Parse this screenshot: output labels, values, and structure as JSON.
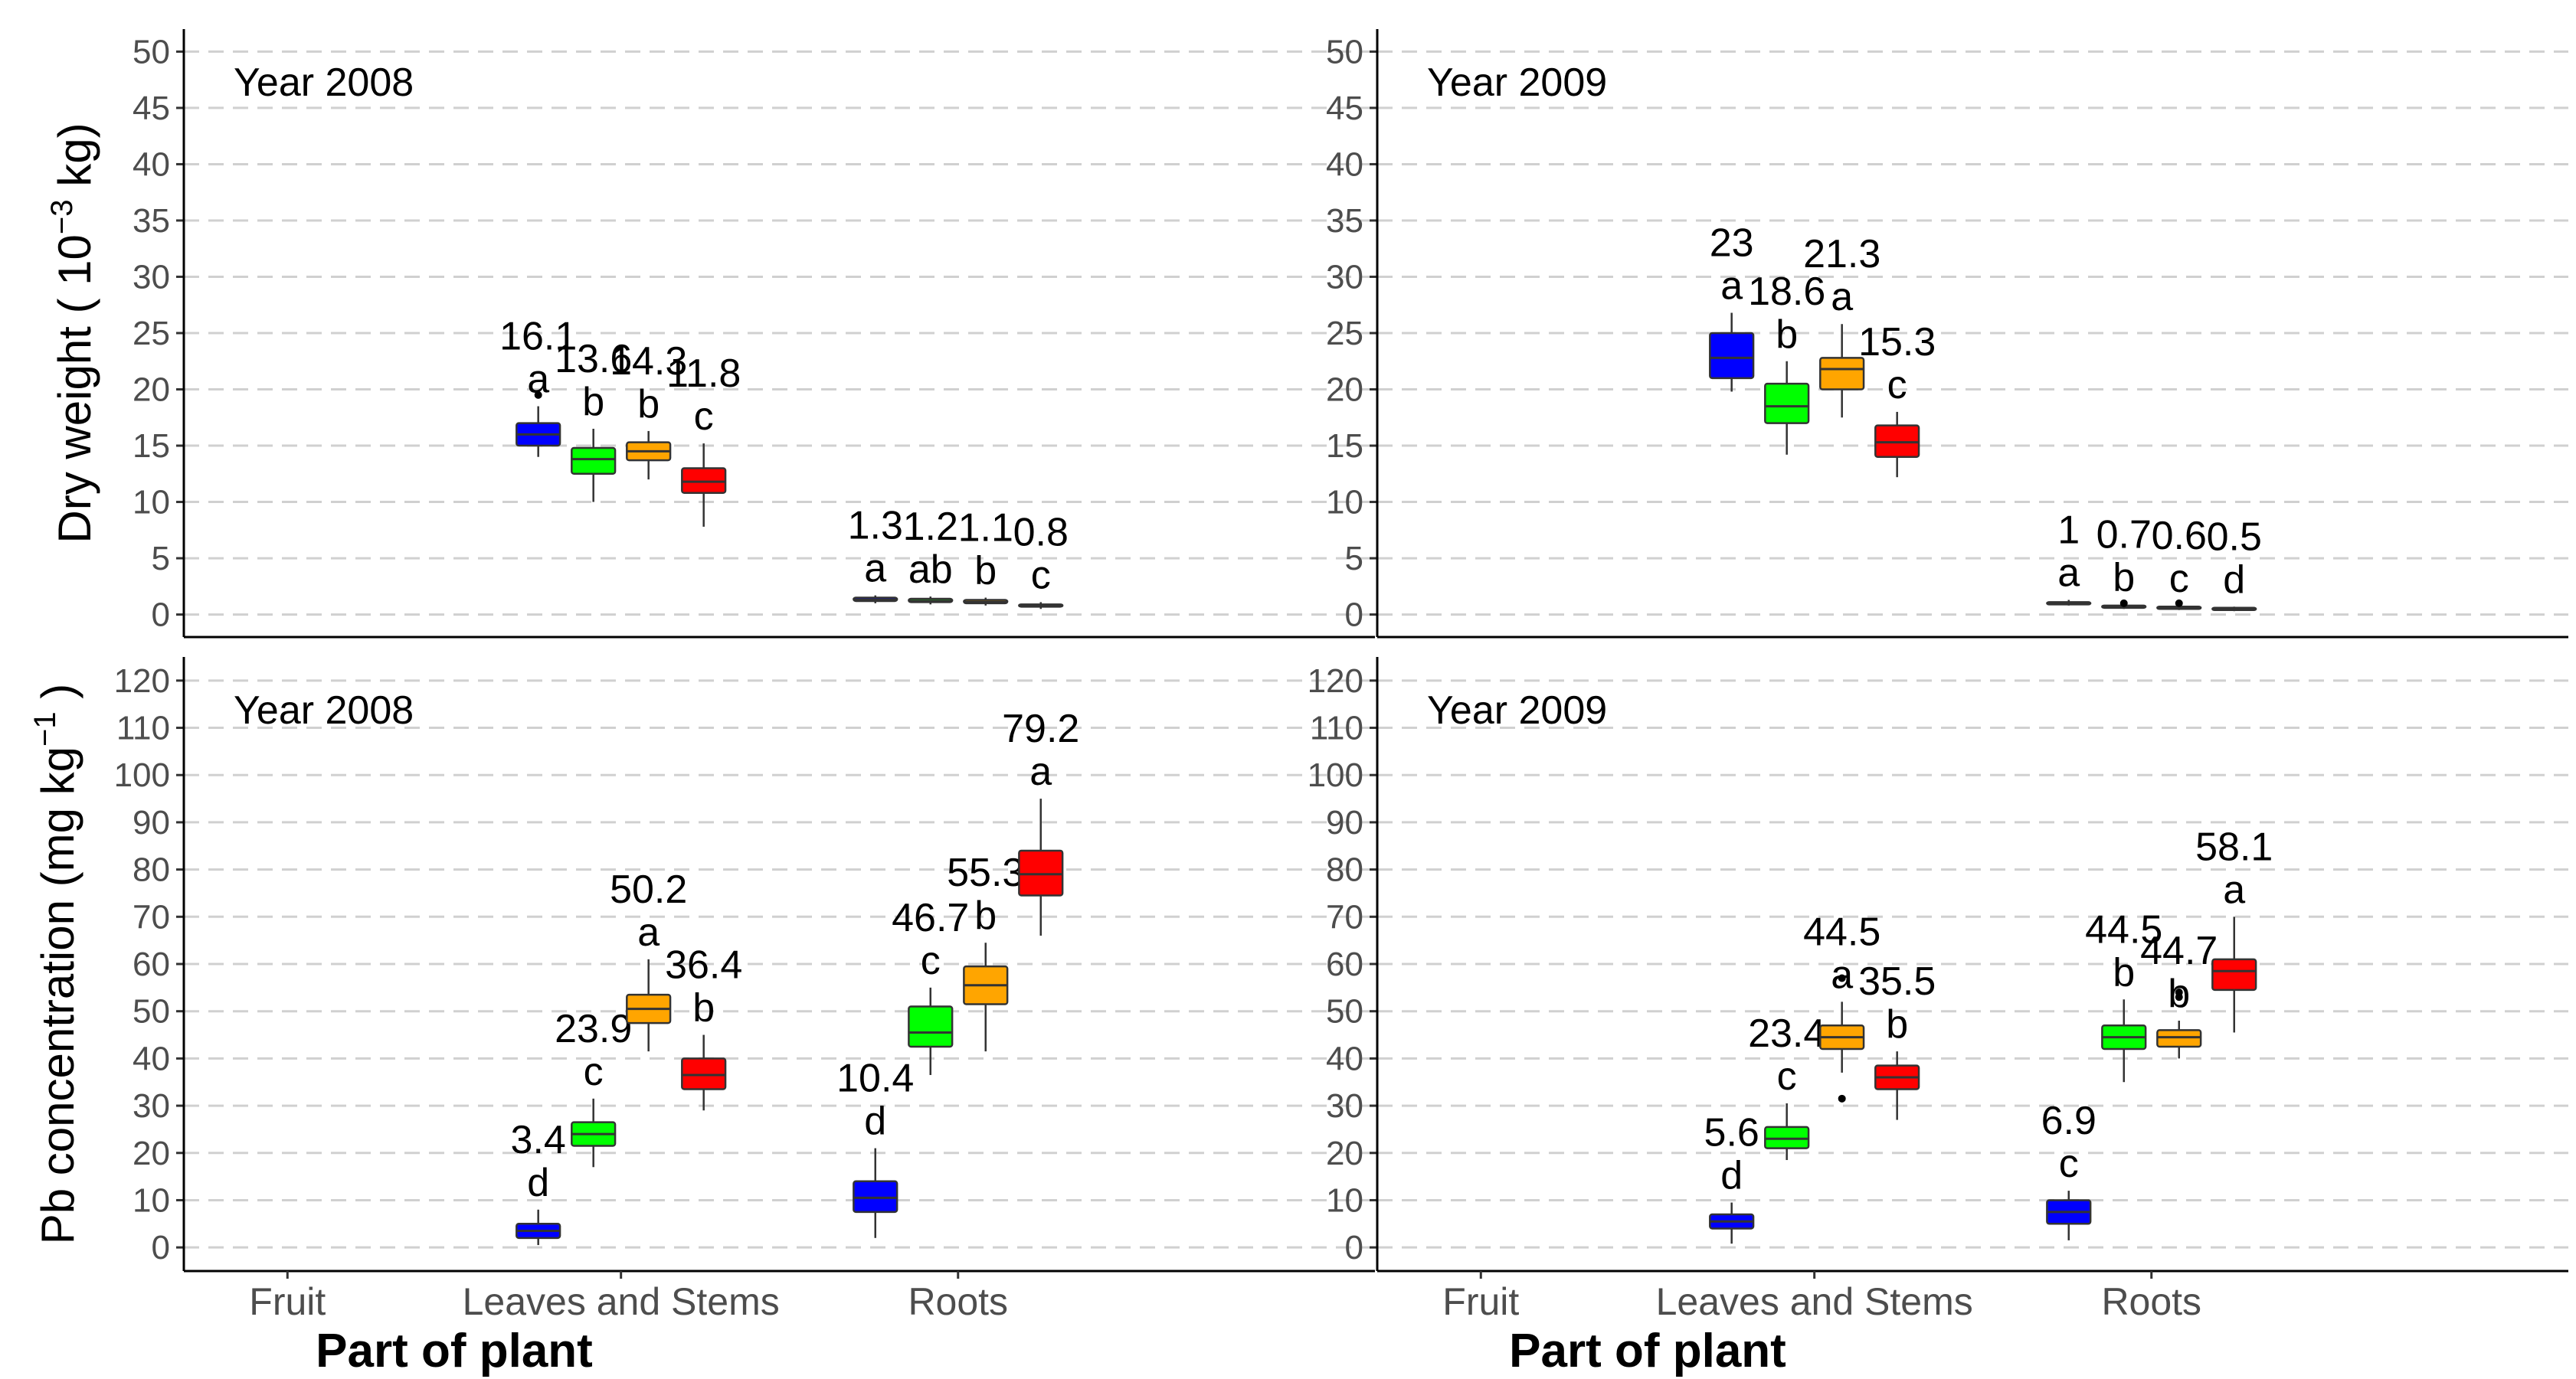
{
  "chart_data": {
    "type": "box",
    "xlabel": "Part of plant",
    "categories": [
      "Fruit",
      "Leaves and Stems",
      "Roots"
    ],
    "series_colors": [
      "#0000ff",
      "#00ff00",
      "#ffa500",
      "#ff0000"
    ],
    "panels": [
      {
        "title": "Year 2008",
        "ylabel_main": "Dry weight ( 10",
        "ylabel_sup": "−3",
        "ylabel_tail": " kg)",
        "ylim": [
          -2,
          52
        ],
        "ticks": [
          0,
          5,
          10,
          15,
          20,
          25,
          30,
          35,
          40,
          45,
          50
        ],
        "boxes": [
          {
            "category": "Leaves and Stems",
            "series": 0,
            "q1": 15.0,
            "median": 16.0,
            "q3": 17.0,
            "whisker_low": 14.0,
            "whisker_high": 18.5,
            "outliers": [
              19.5
            ],
            "mean_label": "16.1",
            "letter": "a"
          },
          {
            "category": "Leaves and Stems",
            "series": 1,
            "q1": 12.5,
            "median": 13.8,
            "q3": 14.8,
            "whisker_low": 10.0,
            "whisker_high": 16.5,
            "outliers": [],
            "mean_label": "13.6",
            "letter": "b"
          },
          {
            "category": "Leaves and Stems",
            "series": 2,
            "q1": 13.7,
            "median": 14.5,
            "q3": 15.3,
            "whisker_low": 12.0,
            "whisker_high": 16.3,
            "outliers": [],
            "mean_label": "14.3",
            "letter": "b"
          },
          {
            "category": "Leaves and Stems",
            "series": 3,
            "q1": 10.8,
            "median": 11.8,
            "q3": 13.0,
            "whisker_low": 7.8,
            "whisker_high": 15.2,
            "outliers": [],
            "mean_label": "11.8",
            "letter": "c"
          },
          {
            "category": "Roots",
            "series": 0,
            "q1": 1.2,
            "median": 1.3,
            "q3": 1.5,
            "whisker_low": 1.0,
            "whisker_high": 1.7,
            "outliers": [],
            "mean_label": "1.3",
            "letter": "a"
          },
          {
            "category": "Roots",
            "series": 1,
            "q1": 1.1,
            "median": 1.2,
            "q3": 1.4,
            "whisker_low": 0.9,
            "whisker_high": 1.6,
            "outliers": [],
            "mean_label": "1.2",
            "letter": "ab"
          },
          {
            "category": "Roots",
            "series": 2,
            "q1": 1.0,
            "median": 1.1,
            "q3": 1.3,
            "whisker_low": 0.8,
            "whisker_high": 1.5,
            "outliers": [],
            "mean_label": "1.1",
            "letter": "b"
          },
          {
            "category": "Roots",
            "series": 3,
            "q1": 0.7,
            "median": 0.8,
            "q3": 0.9,
            "whisker_low": 0.5,
            "whisker_high": 1.1,
            "outliers": [],
            "mean_label": "0.8",
            "letter": "c"
          }
        ]
      },
      {
        "title": "Year 2009",
        "ylabel_main": "",
        "ylabel_sup": "",
        "ylabel_tail": "",
        "ylim": [
          -2,
          52
        ],
        "ticks": [
          0,
          5,
          10,
          15,
          20,
          25,
          30,
          35,
          40,
          45,
          50
        ],
        "boxes": [
          {
            "category": "Leaves and Stems",
            "series": 0,
            "q1": 21.0,
            "median": 22.8,
            "q3": 25.0,
            "whisker_low": 19.8,
            "whisker_high": 26.8,
            "outliers": [],
            "mean_label": "23",
            "letter": "a"
          },
          {
            "category": "Leaves and Stems",
            "series": 1,
            "q1": 17.0,
            "median": 18.5,
            "q3": 20.5,
            "whisker_low": 14.2,
            "whisker_high": 22.5,
            "outliers": [],
            "mean_label": "18.6",
            "letter": "b"
          },
          {
            "category": "Leaves and Stems",
            "series": 2,
            "q1": 20.0,
            "median": 21.8,
            "q3": 22.8,
            "whisker_low": 17.5,
            "whisker_high": 25.8,
            "outliers": [],
            "mean_label": "21.3",
            "letter": "a"
          },
          {
            "category": "Leaves and Stems",
            "series": 3,
            "q1": 14.0,
            "median": 15.3,
            "q3": 16.8,
            "whisker_low": 12.2,
            "whisker_high": 18.0,
            "outliers": [],
            "mean_label": "15.3",
            "letter": "c"
          },
          {
            "category": "Roots",
            "series": 0,
            "q1": 0.9,
            "median": 1.0,
            "q3": 1.1,
            "whisker_low": 0.8,
            "whisker_high": 1.3,
            "outliers": [],
            "mean_label": "1",
            "letter": "a"
          },
          {
            "category": "Roots",
            "series": 1,
            "q1": 0.6,
            "median": 0.7,
            "q3": 0.8,
            "whisker_low": 0.5,
            "whisker_high": 0.9,
            "outliers": [
              1.0
            ],
            "mean_label": "0.7",
            "letter": "b"
          },
          {
            "category": "Roots",
            "series": 2,
            "q1": 0.5,
            "median": 0.6,
            "q3": 0.7,
            "whisker_low": 0.4,
            "whisker_high": 0.8,
            "outliers": [
              1.0
            ],
            "mean_label": "0.6",
            "letter": "c"
          },
          {
            "category": "Roots",
            "series": 3,
            "q1": 0.4,
            "median": 0.5,
            "q3": 0.6,
            "whisker_low": 0.3,
            "whisker_high": 0.7,
            "outliers": [],
            "mean_label": "0.5",
            "letter": "d"
          }
        ]
      },
      {
        "title": "Year 2008",
        "ylabel_main": "Pb concentration (mg  kg",
        "ylabel_sup": "−1",
        "ylabel_tail": " )",
        "ylim": [
          -5,
          125
        ],
        "ticks": [
          0,
          10,
          20,
          30,
          40,
          50,
          60,
          70,
          80,
          90,
          100,
          110,
          120
        ],
        "boxes": [
          {
            "category": "Leaves and Stems",
            "series": 0,
            "q1": 2.0,
            "median": 3.5,
            "q3": 5.0,
            "whisker_low": 0.5,
            "whisker_high": 8.0,
            "outliers": [],
            "mean_label": "3.4",
            "letter": "d"
          },
          {
            "category": "Leaves and Stems",
            "series": 1,
            "q1": 21.5,
            "median": 24.0,
            "q3": 26.5,
            "whisker_low": 17.0,
            "whisker_high": 31.5,
            "outliers": [],
            "mean_label": "23.9",
            "letter": "c"
          },
          {
            "category": "Leaves and Stems",
            "series": 2,
            "q1": 47.5,
            "median": 50.5,
            "q3": 53.5,
            "whisker_low": 41.5,
            "whisker_high": 61.0,
            "outliers": [],
            "mean_label": "50.2",
            "letter": "a"
          },
          {
            "category": "Leaves and Stems",
            "series": 3,
            "q1": 33.5,
            "median": 36.5,
            "q3": 40.0,
            "whisker_low": 29.0,
            "whisker_high": 45.0,
            "outliers": [],
            "mean_label": "36.4",
            "letter": "b"
          },
          {
            "category": "Roots",
            "series": 0,
            "q1": 7.5,
            "median": 10.5,
            "q3": 14.0,
            "whisker_low": 2.0,
            "whisker_high": 21.0,
            "outliers": [],
            "mean_label": "10.4",
            "letter": "d"
          },
          {
            "category": "Roots",
            "series": 1,
            "q1": 42.5,
            "median": 45.5,
            "q3": 51.0,
            "whisker_low": 36.5,
            "whisker_high": 55.0,
            "outliers": [],
            "mean_label": "46.7",
            "letter": "c"
          },
          {
            "category": "Roots",
            "series": 2,
            "q1": 51.5,
            "median": 55.5,
            "q3": 59.5,
            "whisker_low": 41.5,
            "whisker_high": 64.5,
            "outliers": [],
            "mean_label": "55.3",
            "letter": "b"
          },
          {
            "category": "Roots",
            "series": 3,
            "q1": 74.5,
            "median": 79.0,
            "q3": 84.0,
            "whisker_low": 66.0,
            "whisker_high": 95.0,
            "outliers": [],
            "mean_label": "79.2",
            "letter": "a"
          }
        ]
      },
      {
        "title": "Year 2009",
        "ylabel_main": "",
        "ylabel_sup": "",
        "ylabel_tail": "",
        "ylim": [
          -5,
          125
        ],
        "ticks": [
          0,
          10,
          20,
          30,
          40,
          50,
          60,
          70,
          80,
          90,
          100,
          110,
          120
        ],
        "boxes": [
          {
            "category": "Leaves and Stems",
            "series": 0,
            "q1": 4.0,
            "median": 5.5,
            "q3": 7.0,
            "whisker_low": 0.8,
            "whisker_high": 9.5,
            "outliers": [],
            "mean_label": "5.6",
            "letter": "d"
          },
          {
            "category": "Leaves and Stems",
            "series": 1,
            "q1": 21.0,
            "median": 23.0,
            "q3": 25.5,
            "whisker_low": 18.5,
            "whisker_high": 30.5,
            "outliers": [],
            "mean_label": "23.4",
            "letter": "c"
          },
          {
            "category": "Leaves and Stems",
            "series": 2,
            "q1": 42.0,
            "median": 44.5,
            "q3": 47.0,
            "whisker_low": 37.0,
            "whisker_high": 52.0,
            "outliers": [
              57.0,
              31.5
            ],
            "mean_label": "44.5",
            "letter": "a"
          },
          {
            "category": "Leaves and Stems",
            "series": 3,
            "q1": 33.5,
            "median": 36.0,
            "q3": 38.5,
            "whisker_low": 27.0,
            "whisker_high": 41.5,
            "outliers": [],
            "mean_label": "35.5",
            "letter": "b"
          },
          {
            "category": "Roots",
            "series": 0,
            "q1": 5.0,
            "median": 7.5,
            "q3": 10.0,
            "whisker_low": 1.5,
            "whisker_high": 12.0,
            "outliers": [],
            "mean_label": "6.9",
            "letter": "c"
          },
          {
            "category": "Roots",
            "series": 1,
            "q1": 42.0,
            "median": 44.5,
            "q3": 47.0,
            "whisker_low": 35.0,
            "whisker_high": 52.5,
            "outliers": [],
            "mean_label": "44.5",
            "letter": "b"
          },
          {
            "category": "Roots",
            "series": 2,
            "q1": 42.5,
            "median": 44.5,
            "q3": 46.0,
            "whisker_low": 40.0,
            "whisker_high": 48.0,
            "outliers": [
              53.0,
              54.0
            ],
            "mean_label": "44.7",
            "letter": "b"
          },
          {
            "category": "Roots",
            "series": 3,
            "q1": 54.5,
            "median": 58.5,
            "q3": 61.0,
            "whisker_low": 45.5,
            "whisker_high": 70.0,
            "outliers": [],
            "mean_label": "58.1",
            "letter": "a"
          }
        ]
      }
    ]
  }
}
